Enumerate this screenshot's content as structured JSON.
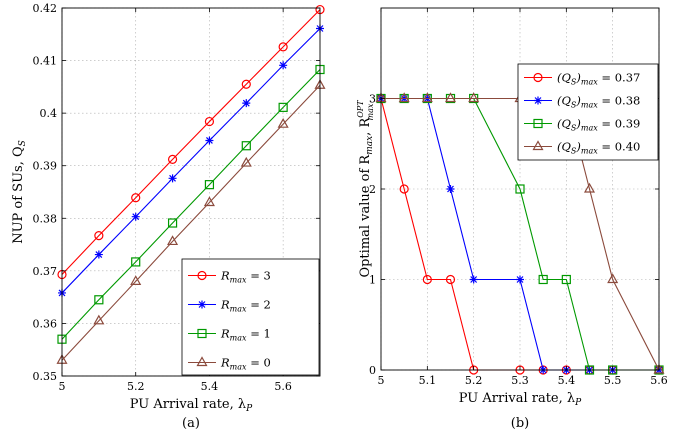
{
  "chart_data": [
    {
      "type": "line",
      "caption": "(a)",
      "xlabel": "PU Arrival rate, λ",
      "xlabel_sub": "P",
      "ylabel": "NUP of SUs, Q",
      "ylabel_sub": "S",
      "xlim": [
        5,
        5.7
      ],
      "ylim": [
        0.35,
        0.42
      ],
      "xticks": [
        5,
        5.2,
        5.4,
        5.6
      ],
      "xtick_labels": [
        "5",
        "5.2",
        "5.4",
        "5.6"
      ],
      "yticks": [
        0.35,
        0.36,
        0.37,
        0.38,
        0.39,
        0.4,
        0.41,
        0.42
      ],
      "ytick_labels": [
        "0.35",
        "0.36",
        "0.37",
        "0.38",
        "0.39",
        "0.4",
        "0.41",
        "0.42"
      ],
      "grid": true,
      "legend_position": "bottom-right",
      "x": [
        5.0,
        5.1,
        5.2,
        5.3,
        5.4,
        5.5,
        5.6,
        5.7
      ],
      "series": [
        {
          "name": "R_max = 3",
          "legend_main": "R",
          "legend_sub": "max",
          "legend_tail": " = 3",
          "color": "#ff0000",
          "marker": "circle",
          "values": [
            0.3693,
            0.3767,
            0.3839,
            0.3912,
            0.3984,
            0.4055,
            0.4126,
            0.4197
          ]
        },
        {
          "name": "R_max = 2",
          "legend_main": "R",
          "legend_sub": "max",
          "legend_tail": " = 2",
          "color": "#0000ff",
          "marker": "star",
          "values": [
            0.3658,
            0.3731,
            0.3803,
            0.3876,
            0.3948,
            0.4019,
            0.4091,
            0.4161
          ]
        },
        {
          "name": "R_max = 1",
          "legend_main": "R",
          "legend_sub": "max",
          "legend_tail": " = 1",
          "color": "#009900",
          "marker": "square",
          "values": [
            0.357,
            0.3645,
            0.3717,
            0.3791,
            0.3864,
            0.3938,
            0.4011,
            0.4083
          ]
        },
        {
          "name": "R_max = 0",
          "legend_main": "R",
          "legend_sub": "max",
          "legend_tail": " = 0",
          "color": "#8b4a3c",
          "marker": "triangle",
          "values": [
            0.353,
            0.3605,
            0.368,
            0.3756,
            0.383,
            0.3905,
            0.3979,
            0.4053
          ]
        }
      ]
    },
    {
      "type": "line",
      "caption": "(b)",
      "xlabel": "PU Arrival rate, λ",
      "xlabel_sub": "P",
      "ylabel": "Optimal value of R",
      "ylabel_sub": "max",
      "ylabel_tail": ", R",
      "ylabel_tail_sup": "OPT",
      "ylabel_tail_sub": "max",
      "xlim": [
        5,
        5.6
      ],
      "ylim": [
        0,
        4
      ],
      "xticks": [
        5,
        5.1,
        5.2,
        5.3,
        5.4,
        5.5,
        5.6
      ],
      "xtick_labels": [
        "5",
        "5.1",
        "5.2",
        "5.3",
        "5.4",
        "5.5",
        "5.6"
      ],
      "yticks": [
        0,
        1,
        2,
        3
      ],
      "ytick_labels": [
        "0",
        "1",
        "2",
        "3"
      ],
      "grid": true,
      "legend_position": "top-right",
      "x": [
        5.0,
        5.05,
        5.1,
        5.15,
        5.2,
        5.3,
        5.35,
        5.4,
        5.45,
        5.5,
        5.6
      ],
      "series": [
        {
          "name": "(Q_S)_max = 0.37",
          "legend_main": "(Q",
          "legend_mid_sub": "S",
          "legend_close": ")",
          "legend_sub": "max",
          "legend_tail": " = 0.37",
          "color": "#ff0000",
          "marker": "circle",
          "values": [
            3,
            2,
            1,
            1,
            0,
            0,
            0,
            0,
            0,
            0,
            0
          ]
        },
        {
          "name": "(Q_S)_max = 0.38",
          "legend_main": "(Q",
          "legend_mid_sub": "S",
          "legend_close": ")",
          "legend_sub": "max",
          "legend_tail": " = 0.38",
          "color": "#0000ff",
          "marker": "star",
          "values": [
            3,
            3,
            3,
            2,
            1,
            1,
            0,
            0,
            0,
            0,
            0
          ]
        },
        {
          "name": "(Q_S)_max = 0.39",
          "legend_main": "(Q",
          "legend_mid_sub": "S",
          "legend_close": ")",
          "legend_sub": "max",
          "legend_tail": " = 0.39",
          "color": "#009900",
          "marker": "square",
          "values": [
            3,
            3,
            3,
            3,
            3,
            2,
            1,
            1,
            0,
            0,
            0
          ]
        },
        {
          "name": "(Q_S)_max = 0.40",
          "legend_main": "(Q",
          "legend_mid_sub": "S",
          "legend_close": ")",
          "legend_sub": "max",
          "legend_tail": " = 0.40",
          "color": "#8b4a3c",
          "marker": "triangle",
          "values": [
            3,
            3,
            3,
            3,
            3,
            3,
            3,
            3,
            2,
            1,
            0
          ]
        }
      ]
    }
  ]
}
